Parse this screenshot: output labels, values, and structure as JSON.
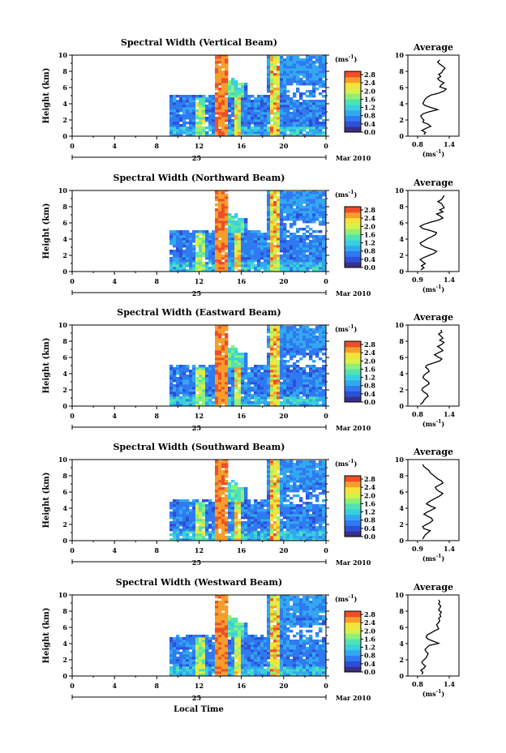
{
  "figure": {
    "x_title": "Local Time",
    "date_label": "Mar 2010",
    "day_label": "25"
  },
  "colorscale": {
    "unit_label": "(ms",
    "unit_exp": "-1",
    "unit_close": ")",
    "ticks": [
      "2.8",
      "2.4",
      "2.0",
      "1.6",
      "1.2",
      "0.8",
      "0.4",
      "0.0"
    ],
    "colors": [
      "#3a2f86",
      "#2e4fd8",
      "#2f7af0",
      "#33a8f0",
      "#39cfe0",
      "#4fe3b2",
      "#8ef07a",
      "#d8f04a",
      "#f5e23a",
      "#f59e2c",
      "#ee4e2a"
    ]
  },
  "chart_data": [
    {
      "type": "heatmap",
      "title": "Spectral Width (Vertical Beam)",
      "ylabel": "Height (km)",
      "xticks": [
        "0",
        "4",
        "8",
        "12",
        "16",
        "20",
        "0"
      ],
      "yticks": [
        "10",
        "8",
        "6",
        "4",
        "2",
        "0"
      ],
      "xlim": [
        0,
        24
      ],
      "ylim": [
        0,
        10
      ],
      "average": {
        "title": "Average",
        "xlabel": "(ms",
        "xticks": [
          "0.8",
          "1.4"
        ],
        "xlim": [
          0.8,
          1.4
        ],
        "profile": [
          0.92,
          0.95,
          0.88,
          0.96,
          1.05,
          1.0,
          0.9,
          0.92,
          0.88,
          0.86,
          0.9,
          1.02,
          1.18,
          1.06,
          0.94,
          0.9,
          0.92,
          0.94,
          0.98,
          1.05,
          1.2,
          1.3,
          1.34,
          1.22,
          1.25,
          1.3,
          1.22,
          1.18,
          1.24,
          1.2,
          1.26,
          1.28,
          1.32,
          1.28,
          1.22,
          1.18,
          1.22
        ]
      }
    },
    {
      "type": "heatmap",
      "title": "Spectral Width (Northward Beam)",
      "ylabel": "Height (km)",
      "xticks": [
        "0",
        "4",
        "8",
        "12",
        "16",
        "20",
        "0"
      ],
      "yticks": [
        "10",
        "8",
        "6",
        "4",
        "2",
        "0"
      ],
      "xlim": [
        0,
        24
      ],
      "ylim": [
        0,
        10
      ],
      "average": {
        "title": "Average",
        "xlabel": "(ms",
        "xticks": [
          "0.9",
          "1.4"
        ],
        "xlim": [
          0.9,
          1.4
        ],
        "profile": [
          0.95,
          1.0,
          0.96,
          1.02,
          0.98,
          0.94,
          1.0,
          1.08,
          1.16,
          1.2,
          1.12,
          1.02,
          0.96,
          0.94,
          1.0,
          1.05,
          1.12,
          1.18,
          1.2,
          1.1,
          0.98,
          0.94,
          1.0,
          1.1,
          1.22,
          1.3,
          1.26,
          1.2,
          1.3,
          1.25,
          1.32,
          1.3,
          1.28,
          1.22,
          1.28,
          1.3,
          1.32
        ]
      }
    },
    {
      "type": "heatmap",
      "title": "Spectral Width (Eastward Beam)",
      "ylabel": "Height (km)",
      "xticks": [
        "0",
        "4",
        "8",
        "12",
        "16",
        "20",
        "0"
      ],
      "yticks": [
        "10",
        "8",
        "6",
        "4",
        "2",
        "0"
      ],
      "xlim": [
        0,
        24
      ],
      "ylim": [
        0,
        10
      ],
      "average": {
        "title": "Average",
        "xlabel": "(ms",
        "xticks": [
          "0.8",
          "1.4"
        ],
        "xlim": [
          0.8,
          1.4
        ],
        "profile": [
          0.85,
          0.9,
          0.92,
          0.95,
          1.0,
          0.98,
          0.92,
          0.88,
          0.9,
          0.96,
          1.02,
          1.0,
          0.94,
          0.9,
          0.92,
          0.96,
          1.02,
          1.0,
          0.95,
          0.98,
          1.1,
          1.22,
          1.26,
          1.18,
          1.12,
          1.2,
          1.28,
          1.24,
          1.18,
          1.26,
          1.3,
          1.22,
          1.28,
          1.24,
          1.2,
          1.26,
          1.24
        ]
      }
    },
    {
      "type": "heatmap",
      "title": "Spectral Width (Southward Beam)",
      "ylabel": "Height (km)",
      "xticks": [
        "0",
        "4",
        "8",
        "12",
        "16",
        "20",
        "0"
      ],
      "yticks": [
        "10",
        "8",
        "6",
        "4",
        "2",
        "0"
      ],
      "xlim": [
        0,
        24
      ],
      "ylim": [
        0,
        10
      ],
      "average": {
        "title": "Average",
        "xlabel": "(ms",
        "xticks": [
          "0.9",
          "1.4"
        ],
        "xlim": [
          0.9,
          1.4
        ],
        "profile": [
          0.98,
          1.0,
          1.02,
          1.06,
          1.1,
          1.0,
          0.98,
          1.04,
          1.1,
          1.14,
          1.12,
          1.06,
          1.0,
          1.05,
          1.12,
          1.18,
          1.1,
          1.04,
          1.08,
          1.14,
          1.2,
          1.26,
          1.3,
          1.24,
          1.2,
          1.18,
          1.24,
          1.3,
          1.28,
          1.22,
          1.18,
          1.14,
          1.1,
          1.08,
          1.04,
          1.0,
          0.98
        ]
      }
    },
    {
      "type": "heatmap",
      "title": "Spectral Width (Westward Beam)",
      "ylabel": "Height (km)",
      "xticks": [
        "0",
        "4",
        "8",
        "12",
        "16",
        "20",
        "0"
      ],
      "yticks": [
        "10",
        "8",
        "6",
        "4",
        "2",
        "0"
      ],
      "xlim": [
        0,
        24
      ],
      "ylim": [
        0,
        10
      ],
      "average": {
        "title": "Average",
        "xlabel": "(ms",
        "xticks": [
          "0.8",
          "1.4"
        ],
        "xlim": [
          0.8,
          1.4
        ],
        "profile": [
          0.88,
          0.9,
          0.86,
          0.92,
          0.95,
          0.9,
          0.88,
          0.92,
          0.96,
          0.98,
          1.0,
          0.96,
          0.94,
          0.98,
          1.02,
          1.2,
          1.1,
          1.0,
          0.96,
          0.98,
          1.05,
          1.12,
          1.2,
          1.18,
          1.16,
          1.2,
          1.22,
          1.2,
          1.24,
          1.22,
          1.25,
          1.2,
          1.22,
          1.24,
          1.2,
          1.22,
          1.2
        ]
      }
    }
  ]
}
